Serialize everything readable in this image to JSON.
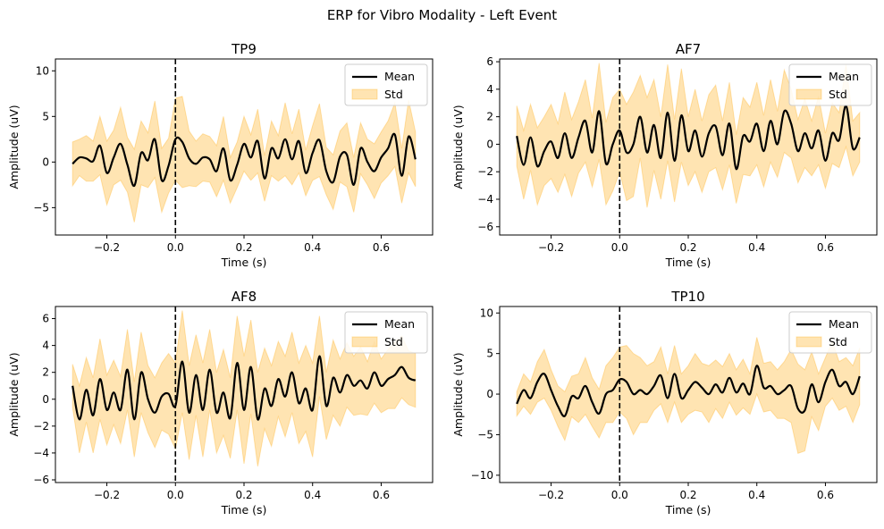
{
  "figure": {
    "suptitle": "ERP for Vibro Modality - Left Event",
    "colors": {
      "mean": "#000000",
      "std_fill": "#ffa500",
      "axes": "#000000"
    }
  },
  "chart_data": [
    {
      "type": "line",
      "title": "TP9",
      "xlabel": "Time (s)",
      "ylabel": "Amplitude (uV)",
      "xlim": [
        -0.35,
        0.75
      ],
      "ylim": [
        -8,
        11.3
      ],
      "xticks": [
        -0.2,
        0.0,
        0.2,
        0.4,
        0.6
      ],
      "xtick_labels": [
        "−0.2",
        "0.0",
        "0.2",
        "0.4",
        "0.6"
      ],
      "yticks": [
        -5,
        0,
        5,
        10
      ],
      "ytick_labels": [
        "−5",
        "0",
        "5",
        "10"
      ],
      "legend": {
        "location": "upper right",
        "mean_label": "Mean",
        "std_label": "Std"
      },
      "event_line_x": 0.0,
      "x": [
        -0.3,
        -0.28,
        -0.26,
        -0.24,
        -0.22,
        -0.2,
        -0.18,
        -0.16,
        -0.14,
        -0.12,
        -0.1,
        -0.08,
        -0.06,
        -0.04,
        -0.02,
        0.0,
        0.02,
        0.04,
        0.06,
        0.08,
        0.1,
        0.12,
        0.14,
        0.16,
        0.18,
        0.2,
        0.22,
        0.24,
        0.26,
        0.28,
        0.3,
        0.32,
        0.34,
        0.36,
        0.38,
        0.4,
        0.42,
        0.44,
        0.46,
        0.48,
        0.5,
        0.52,
        0.54,
        0.56,
        0.58,
        0.6,
        0.62,
        0.64,
        0.66,
        0.68,
        0.7
      ],
      "series": [
        {
          "name": "Mean",
          "values": [
            -0.2,
            0.5,
            0.4,
            0.1,
            1.8,
            -1.2,
            0.5,
            2.0,
            -0.3,
            -2.6,
            1.0,
            0.2,
            2.5,
            -2.0,
            -0.4,
            2.5,
            2.2,
            0.4,
            -0.2,
            0.5,
            0.3,
            -1.0,
            1.5,
            -2.0,
            -0.3,
            2.0,
            0.5,
            2.3,
            -1.8,
            1.5,
            0.4,
            2.5,
            0.3,
            2.3,
            -1.2,
            1.0,
            2.4,
            -1.0,
            -2.2,
            0.6,
            0.8,
            -2.5,
            1.5,
            0.0,
            -1.0,
            0.5,
            1.5,
            3.0,
            -1.5,
            2.8,
            0.3
          ],
          "std": [
            2.4,
            2.0,
            2.5,
            2.2,
            3.2,
            3.5,
            3.0,
            4.0,
            3.0,
            4.0,
            3.5,
            3.0,
            4.2,
            3.5,
            3.0,
            4.5,
            5.0,
            3.0,
            2.5,
            2.6,
            2.5,
            2.8,
            3.5,
            2.5,
            2.5,
            3.0,
            2.5,
            3.5,
            2.5,
            3.0,
            2.5,
            4.0,
            2.8,
            3.5,
            2.5,
            3.0,
            4.0,
            2.6,
            3.0,
            2.8,
            3.5,
            3.0,
            2.8,
            2.5,
            3.0,
            2.8,
            3.0,
            3.5,
            3.0,
            4.0,
            3.0
          ]
        }
      ]
    },
    {
      "type": "line",
      "title": "AF7",
      "xlabel": "Time (s)",
      "ylabel": "Amplitude (uV)",
      "xlim": [
        -0.35,
        0.75
      ],
      "ylim": [
        -6.6,
        6.2
      ],
      "xticks": [
        -0.2,
        0.0,
        0.2,
        0.4,
        0.6
      ],
      "xtick_labels": [
        "−0.2",
        "0.0",
        "0.2",
        "0.4",
        "0.6"
      ],
      "yticks": [
        -6,
        -4,
        -2,
        0,
        2,
        4,
        6
      ],
      "ytick_labels": [
        "−6",
        "−4",
        "−2",
        "0",
        "2",
        "4",
        "6"
      ],
      "legend": {
        "location": "upper right",
        "mean_label": "Mean",
        "std_label": "Std"
      },
      "event_line_x": 0.0,
      "x": [
        -0.3,
        -0.28,
        -0.26,
        -0.24,
        -0.22,
        -0.2,
        -0.18,
        -0.16,
        -0.14,
        -0.12,
        -0.1,
        -0.08,
        -0.06,
        -0.04,
        -0.02,
        0.0,
        0.02,
        0.04,
        0.06,
        0.08,
        0.1,
        0.12,
        0.14,
        0.16,
        0.18,
        0.2,
        0.22,
        0.24,
        0.26,
        0.28,
        0.3,
        0.32,
        0.34,
        0.36,
        0.38,
        0.4,
        0.42,
        0.44,
        0.46,
        0.48,
        0.5,
        0.52,
        0.54,
        0.56,
        0.58,
        0.6,
        0.62,
        0.64,
        0.66,
        0.68,
        0.7
      ],
      "series": [
        {
          "name": "Mean",
          "values": [
            0.6,
            -1.5,
            0.5,
            -1.6,
            -0.5,
            0.2,
            -1.0,
            0.8,
            -1.0,
            0.5,
            1.7,
            -0.6,
            2.4,
            -1.4,
            0.0,
            1.0,
            -0.6,
            0.0,
            2.0,
            -0.6,
            1.4,
            -1.0,
            2.3,
            -1.2,
            2.1,
            -0.5,
            1.0,
            -0.9,
            0.8,
            1.3,
            -0.8,
            1.5,
            -1.8,
            0.6,
            0.2,
            1.5,
            -0.5,
            1.7,
            0.0,
            2.4,
            1.5,
            -0.5,
            0.8,
            -0.3,
            1.0,
            -1.2,
            0.8,
            0.3,
            2.8,
            -0.3,
            0.5
          ]
        }
      ],
      "std_series": [
        2.2,
        2.5,
        2.4,
        2.8,
        2.5,
        2.7,
        2.5,
        3.0,
        2.8,
        2.6,
        3.0,
        2.5,
        3.5,
        3.0,
        3.4,
        3.0,
        3.5,
        3.8,
        3.0,
        4.0,
        3.3,
        3.0,
        3.5,
        3.0,
        3.4,
        2.5,
        3.0,
        2.6,
        2.8,
        3.0,
        2.5,
        3.0,
        2.5,
        2.8,
        2.5,
        3.0,
        2.6,
        3.0,
        2.4,
        3.0,
        2.5,
        2.3,
        2.5,
        2.0,
        2.5,
        2.0,
        2.2,
        2.0,
        3.0,
        2.0,
        1.8
      ]
    },
    {
      "type": "line",
      "title": "AF8",
      "xlabel": "Time (s)",
      "ylabel": "Amplitude (uV)",
      "xlim": [
        -0.35,
        0.75
      ],
      "ylim": [
        -6.2,
        6.9
      ],
      "xticks": [
        -0.2,
        0.0,
        0.2,
        0.4,
        0.6
      ],
      "xtick_labels": [
        "−0.2",
        "0.0",
        "0.2",
        "0.4",
        "0.6"
      ],
      "yticks": [
        -6,
        -4,
        -2,
        0,
        2,
        4,
        6
      ],
      "ytick_labels": [
        "−6",
        "−4",
        "−2",
        "0",
        "2",
        "4",
        "6"
      ],
      "legend": {
        "location": "upper right",
        "mean_label": "Mean",
        "std_label": "Std"
      },
      "event_line_x": 0.0,
      "x": [
        -0.3,
        -0.28,
        -0.26,
        -0.24,
        -0.22,
        -0.2,
        -0.18,
        -0.16,
        -0.14,
        -0.12,
        -0.1,
        -0.08,
        -0.06,
        -0.04,
        -0.02,
        0.0,
        0.02,
        0.04,
        0.06,
        0.08,
        0.1,
        0.12,
        0.14,
        0.16,
        0.18,
        0.2,
        0.22,
        0.24,
        0.26,
        0.28,
        0.3,
        0.32,
        0.34,
        0.36,
        0.38,
        0.4,
        0.42,
        0.44,
        0.46,
        0.48,
        0.5,
        0.52,
        0.54,
        0.56,
        0.58,
        0.6,
        0.62,
        0.64,
        0.66,
        0.68,
        0.7
      ],
      "series": [
        {
          "name": "Mean",
          "values": [
            1.0,
            -1.5,
            0.7,
            -1.2,
            1.5,
            -0.8,
            0.5,
            -0.8,
            2.2,
            -1.5,
            2.0,
            0.0,
            -1.0,
            0.2,
            0.4,
            -0.5,
            2.8,
            -1.0,
            1.8,
            -0.8,
            2.2,
            -1.0,
            0.5,
            -1.4,
            2.7,
            -0.8,
            2.4,
            -1.5,
            0.8,
            -0.5,
            1.5,
            0.2,
            2.0,
            -0.3,
            0.8,
            -0.8,
            3.2,
            -0.5,
            1.6,
            0.5,
            1.8,
            1.0,
            1.4,
            0.8,
            2.0,
            1.0,
            1.5,
            1.8,
            2.4,
            1.6,
            1.4
          ]
        }
      ],
      "std_series": [
        1.6,
        2.5,
        2.4,
        2.8,
        3.0,
        2.6,
        2.4,
        2.5,
        3.0,
        2.8,
        3.0,
        2.5,
        2.6,
        2.5,
        3.0,
        3.2,
        3.8,
        3.5,
        3.0,
        3.5,
        3.0,
        3.0,
        3.2,
        3.0,
        3.5,
        4.0,
        3.5,
        3.5,
        3.0,
        3.0,
        2.8,
        3.0,
        3.0,
        3.0,
        3.2,
        3.5,
        3.0,
        2.5,
        2.8,
        2.5,
        2.4,
        2.2,
        2.5,
        2.0,
        2.3,
        2.0,
        2.2,
        2.5,
        2.3,
        2.0,
        2.0
      ]
    },
    {
      "type": "line",
      "title": "TP10",
      "xlabel": "Time (s)",
      "ylabel": "Amplitude (uV)",
      "xlim": [
        -0.35,
        0.75
      ],
      "ylim": [
        -10.9,
        10.8
      ],
      "xticks": [
        -0.2,
        0.0,
        0.2,
        0.4,
        0.6
      ],
      "xtick_labels": [
        "−0.2",
        "0.0",
        "0.2",
        "0.4",
        "0.6"
      ],
      "yticks": [
        -10,
        -5,
        0,
        5,
        10
      ],
      "ytick_labels": [
        "−10",
        "−5",
        "0",
        "5",
        "10"
      ],
      "legend": {
        "location": "upper right",
        "mean_label": "Mean",
        "std_label": "Std"
      },
      "event_line_x": 0.0,
      "x": [
        -0.3,
        -0.28,
        -0.26,
        -0.24,
        -0.22,
        -0.2,
        -0.18,
        -0.16,
        -0.14,
        -0.12,
        -0.1,
        -0.08,
        -0.06,
        -0.04,
        -0.02,
        0.0,
        0.02,
        0.04,
        0.06,
        0.08,
        0.1,
        0.12,
        0.14,
        0.16,
        0.18,
        0.2,
        0.22,
        0.24,
        0.26,
        0.28,
        0.3,
        0.32,
        0.34,
        0.36,
        0.38,
        0.4,
        0.42,
        0.44,
        0.46,
        0.48,
        0.5,
        0.52,
        0.54,
        0.56,
        0.58,
        0.6,
        0.62,
        0.64,
        0.66,
        0.68,
        0.7
      ],
      "series": [
        {
          "name": "Mean",
          "values": [
            -1.2,
            0.5,
            -0.5,
            1.5,
            2.5,
            0.5,
            -1.5,
            -2.7,
            -0.3,
            -0.5,
            1.0,
            -1.0,
            -2.4,
            0.0,
            0.5,
            1.8,
            1.5,
            0.0,
            0.5,
            0.0,
            1.0,
            2.3,
            -0.5,
            2.5,
            -0.5,
            0.5,
            1.5,
            0.8,
            0.0,
            1.2,
            0.2,
            2.0,
            0.2,
            1.3,
            0.0,
            3.5,
            0.8,
            1.0,
            0.0,
            0.5,
            1.0,
            -1.8,
            -2.0,
            1.2,
            -1.0,
            1.5,
            3.0,
            1.0,
            1.5,
            0.0,
            2.2
          ]
        }
      ],
      "std_series": [
        1.5,
        2.0,
        2.0,
        2.5,
        3.0,
        2.5,
        2.5,
        3.0,
        2.5,
        3.0,
        3.5,
        3.0,
        3.0,
        3.5,
        4.0,
        4.0,
        4.5,
        5.0,
        4.0,
        3.5,
        3.0,
        3.5,
        3.0,
        3.5,
        3.0,
        3.0,
        3.5,
        3.0,
        3.5,
        3.0,
        3.2,
        3.0,
        2.8,
        3.0,
        2.5,
        3.5,
        3.0,
        3.0,
        3.0,
        3.5,
        4.5,
        5.5,
        5.0,
        4.0,
        3.5,
        3.0,
        3.5,
        3.0,
        3.0,
        3.5,
        3.5
      ]
    }
  ]
}
